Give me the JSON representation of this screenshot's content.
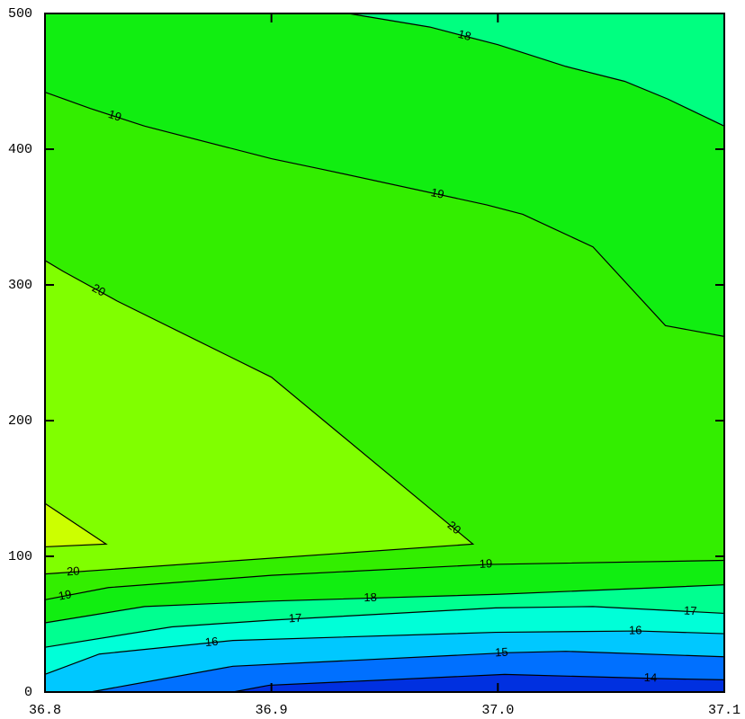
{
  "chart_data": {
    "type": "contour",
    "xlim": [
      36.8,
      37.1
    ],
    "ylim": [
      0,
      500
    ],
    "xticks": [
      36.8,
      36.9,
      {
        "value": 37.0,
        "label": "37.0"
      },
      37.1
    ],
    "yticks": [
      0,
      100,
      200,
      300,
      400,
      500
    ],
    "regions": [
      {
        "color": "#33ee00",
        "x": [
          36.8,
          37.1,
          37.1,
          36.8
        ],
        "y": [
          0,
          0,
          500,
          500
        ]
      },
      {
        "color": "#11ee11",
        "x": [
          36.8,
          36.82,
          36.844,
          36.9,
          36.923,
          36.995,
          37.011,
          37.042,
          37.074,
          37.1,
          37.1,
          36.8
        ],
        "y": [
          442,
          430,
          417,
          393,
          385,
          359,
          352,
          328,
          270,
          262,
          500,
          500
        ]
      },
      {
        "color": "#00ff80",
        "x": [
          36.934,
          36.97,
          37.0,
          37.03,
          37.056,
          37.075,
          37.1,
          37.1
        ],
        "y": [
          500,
          490,
          477,
          461,
          450,
          437,
          417,
          500
        ]
      },
      {
        "color": "#80ff00",
        "x": [
          36.8,
          36.808,
          36.832,
          36.9,
          36.989,
          36.8
        ],
        "y": [
          318,
          310,
          288,
          232,
          109,
          87
        ]
      },
      {
        "color": "#ccff00",
        "x": [
          36.8,
          36.827,
          36.8
        ],
        "y": [
          139,
          109,
          107
        ]
      },
      {
        "color": "#11ee11",
        "x": [
          36.8,
          36.828,
          36.9,
          36.995,
          37.1,
          37.1,
          36.8
        ],
        "y": [
          68,
          77,
          86,
          94,
          97,
          0,
          0
        ]
      },
      {
        "color": "#00ff90",
        "x": [
          36.8,
          36.844,
          36.9,
          37.0,
          37.1,
          37.1,
          36.8
        ],
        "y": [
          51,
          63,
          67,
          72,
          79,
          0,
          0
        ]
      },
      {
        "color": "#00ffd8",
        "x": [
          36.8,
          36.856,
          36.9,
          36.999,
          37.042,
          37.1,
          37.1,
          36.8
        ],
        "y": [
          33,
          48,
          53,
          62,
          63,
          58,
          0,
          0
        ]
      },
      {
        "color": "#00c8ff",
        "x": [
          36.8,
          36.824,
          36.883,
          36.999,
          37.062,
          37.1,
          37.1,
          36.8
        ],
        "y": [
          13,
          28,
          38,
          44,
          45,
          43,
          0,
          0
        ]
      },
      {
        "color": "#0070ff",
        "x": [
          36.82,
          36.883,
          37.005,
          37.03,
          37.1,
          37.1
        ],
        "y": [
          0,
          19,
          29,
          30,
          26,
          0
        ]
      },
      {
        "color": "#0030e0",
        "x": [
          36.883,
          36.899,
          37.003,
          37.069,
          37.1,
          37.1
        ],
        "y": [
          0,
          5,
          13,
          10,
          9,
          0
        ]
      }
    ],
    "contours": [
      {
        "level": 18,
        "x": [
          36.934,
          36.97,
          37.0,
          37.03,
          37.056,
          37.075,
          37.1
        ],
        "y": [
          500,
          490,
          477,
          461,
          450,
          437,
          417
        ]
      },
      {
        "level": 19,
        "x": [
          36.8,
          36.82,
          36.844,
          36.9,
          36.923,
          36.995,
          37.011,
          37.042,
          37.074,
          37.1
        ],
        "y": [
          442,
          430,
          417,
          393,
          385,
          359,
          352,
          328,
          270,
          262
        ]
      },
      {
        "level": 20,
        "x": [
          36.8,
          36.808,
          36.832,
          36.9,
          36.989,
          36.8
        ],
        "y": [
          318,
          310,
          288,
          232,
          109,
          87
        ]
      },
      {
        "x": [
          36.8,
          36.827,
          36.8
        ],
        "y": [
          139,
          109,
          107
        ]
      },
      {
        "level": 19,
        "x": [
          36.8,
          36.828,
          36.9,
          36.995,
          37.1
        ],
        "y": [
          68,
          77,
          86,
          94,
          97
        ]
      },
      {
        "level": 18,
        "x": [
          36.8,
          36.844,
          36.9,
          37.0,
          37.1
        ],
        "y": [
          51,
          63,
          67,
          72,
          79
        ]
      },
      {
        "level": 17,
        "x": [
          36.8,
          36.856,
          36.9,
          36.999,
          37.042,
          37.1
        ],
        "y": [
          33,
          48,
          53,
          62,
          63,
          58
        ]
      },
      {
        "level": 16,
        "x": [
          36.8,
          36.824,
          36.883,
          36.999,
          37.062,
          37.1
        ],
        "y": [
          13,
          28,
          38,
          44,
          45,
          43
        ]
      },
      {
        "level": 15,
        "x": [
          36.82,
          36.883,
          37.005,
          37.03,
          37.1
        ],
        "y": [
          0,
          19,
          29,
          30,
          26
        ]
      },
      {
        "level": 14,
        "x": [
          36.883,
          36.899,
          37.003,
          37.069,
          37.1
        ],
        "y": [
          0,
          5,
          13,
          10,
          9
        ]
      }
    ]
  }
}
